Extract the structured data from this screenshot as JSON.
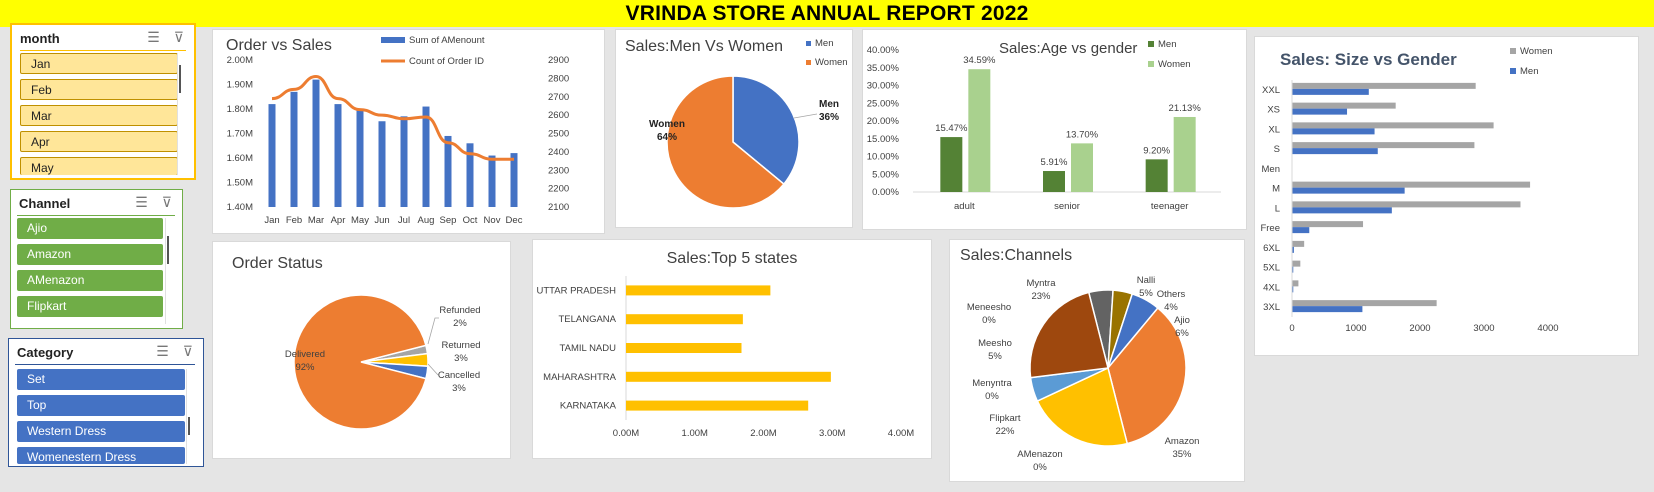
{
  "title": "VRINDA STORE ANNUAL REPORT 2022",
  "slicers": [
    {
      "header": "month",
      "items": [
        "Jan",
        "Feb",
        "Mar",
        "Apr",
        "May"
      ]
    },
    {
      "header": "Channel",
      "items": [
        "Ajio",
        "Amazon",
        "AMenazon",
        "Flipkart"
      ]
    },
    {
      "header": "Category",
      "items": [
        "Set",
        "Top",
        "Western Dress",
        "Womenestern Dress"
      ]
    }
  ],
  "chart_data": [
    {
      "type": "bar+line",
      "title": "Order vs Sales",
      "categories": [
        "Jan",
        "Feb",
        "Mar",
        "Apr",
        "May",
        "Jun",
        "Jul",
        "Aug",
        "Sep",
        "Oct",
        "Nov",
        "Dec"
      ],
      "series": [
        {
          "name": "Sum of AMenount",
          "type": "bar",
          "axis": "left",
          "values": [
            1.82,
            1.87,
            1.92,
            1.82,
            1.8,
            1.75,
            1.77,
            1.81,
            1.69,
            1.66,
            1.61,
            1.62
          ]
        },
        {
          "name": "Count of Order ID",
          "type": "line",
          "axis": "right",
          "values": [
            2690,
            2740,
            2810,
            2690,
            2630,
            2600,
            2580,
            2590,
            2450,
            2390,
            2360,
            2360
          ]
        }
      ],
      "y_left": {
        "min": 1.4,
        "max": 2.0,
        "ticks": [
          "1.40M",
          "1.50M",
          "1.60M",
          "1.70M",
          "1.80M",
          "1.90M",
          "2.00M"
        ]
      },
      "y_right": {
        "min": 2100,
        "max": 2900,
        "ticks": [
          "2100",
          "2200",
          "2300",
          "2400",
          "2500",
          "2600",
          "2700",
          "2800",
          "2900"
        ]
      },
      "colors": {
        "bar": "#4472c4",
        "line": "#ed7d31"
      }
    },
    {
      "type": "pie",
      "title": "Sales:Men Vs Women",
      "legend": [
        "Men",
        "Women"
      ],
      "slices": [
        {
          "name": "Men",
          "value": 36,
          "label": "Men",
          "pct": "36%",
          "color": "#4472c4"
        },
        {
          "name": "Women",
          "value": 64,
          "label": "Women",
          "pct": "64%",
          "color": "#ed7d31"
        }
      ]
    },
    {
      "type": "bar",
      "title": "Sales:Age vs gender",
      "categories": [
        "adult",
        "senior",
        "teenager"
      ],
      "series": [
        {
          "name": "Men",
          "values": [
            15.47,
            5.91,
            9.2
          ],
          "labels": [
            "15.47%",
            "5.91%",
            "9.20%"
          ],
          "color": "#548235"
        },
        {
          "name": "Women",
          "values": [
            34.59,
            13.7,
            21.13
          ],
          "labels": [
            "34.59%",
            "13.70%",
            "21.13%"
          ],
          "color": "#a9d18e"
        }
      ],
      "ylim": [
        0,
        40
      ],
      "y_ticks": [
        "0.00%",
        "5.00%",
        "10.00%",
        "15.00%",
        "20.00%",
        "25.00%",
        "30.00%",
        "35.00%",
        "40.00%"
      ]
    },
    {
      "type": "bar-horizontal",
      "title": "Sales: Size vs Gender",
      "categories": [
        "XXL",
        "XS",
        "XL",
        "S",
        "Men",
        "M",
        "L",
        "Free",
        "6XL",
        "5XL",
        "4XL",
        "3XL"
      ],
      "series": [
        {
          "name": "Women",
          "values": [
            2870,
            1620,
            3150,
            2850,
            0,
            3720,
            3570,
            1110,
            190,
            130,
            100,
            2260
          ],
          "color": "#a5a5a5"
        },
        {
          "name": "Men",
          "values": [
            1200,
            860,
            1290,
            1340,
            5,
            1760,
            1560,
            270,
            30,
            20,
            20,
            1100
          ],
          "color": "#4472c4"
        }
      ],
      "xlim": [
        0,
        4000
      ],
      "x_ticks": [
        "0",
        "1000",
        "2000",
        "3000",
        "4000"
      ]
    },
    {
      "type": "pie",
      "title": "Order Status",
      "slices": [
        {
          "name": "Delivered",
          "value": 92,
          "label": "Delivered",
          "pct": "92%",
          "color": "#ed7d31"
        },
        {
          "name": "Refunded",
          "value": 2,
          "label": "Refunded",
          "pct": "2%",
          "color": "#a5a5a5"
        },
        {
          "name": "Returned",
          "value": 3,
          "label": "Returned",
          "pct": "3%",
          "color": "#ffc000"
        },
        {
          "name": "Cancelled",
          "value": 3,
          "label": "Cancelled",
          "pct": "3%",
          "color": "#4472c4"
        }
      ]
    },
    {
      "type": "bar-horizontal",
      "title": "Sales:Top 5 states",
      "categories": [
        "UTTAR PRADESH",
        "TELANGANA",
        "TAMIL NADU",
        "MAHARASHTRA",
        "KARNATAKA"
      ],
      "values": [
        2.1,
        1.7,
        1.68,
        2.98,
        2.65
      ],
      "xlim": [
        0,
        4
      ],
      "x_ticks": [
        "0.00M",
        "1.00M",
        "2.00M",
        "3.00M",
        "4.00M"
      ],
      "color": "#ffc000"
    },
    {
      "type": "pie",
      "title": "Sales:Channels",
      "slices": [
        {
          "name": "Nalli",
          "value": 5,
          "label": "Nalli",
          "pct": "5%",
          "color": "#636363"
        },
        {
          "name": "Others",
          "value": 4,
          "label": "Others",
          "pct": "4%",
          "color": "#997300"
        },
        {
          "name": "Ajio",
          "value": 6,
          "label": "Ajio",
          "pct": "6%",
          "color": "#4472c4"
        },
        {
          "name": "Amazon",
          "value": 35,
          "label": "Amazon",
          "pct": "35%",
          "color": "#ed7d31"
        },
        {
          "name": "AMenazon",
          "value": 0,
          "label": "AMenazon",
          "pct": "0%",
          "color": "#a5a5a5"
        },
        {
          "name": "Flipkart",
          "value": 22,
          "label": "Flipkart",
          "pct": "22%",
          "color": "#ffc000"
        },
        {
          "name": "Menyntra",
          "value": 0,
          "label": "Menyntra",
          "pct": "0%",
          "color": "#264478"
        },
        {
          "name": "Meesho",
          "value": 5,
          "label": "Meesho",
          "pct": "5%",
          "color": "#5b9bd5"
        },
        {
          "name": "Meneesho",
          "value": 0,
          "label": "Meneesho",
          "pct": "0%",
          "color": "#70ad47"
        },
        {
          "name": "Myntra",
          "value": 23,
          "label": "Myntra",
          "pct": "23%",
          "color": "#9e480e"
        }
      ]
    }
  ]
}
